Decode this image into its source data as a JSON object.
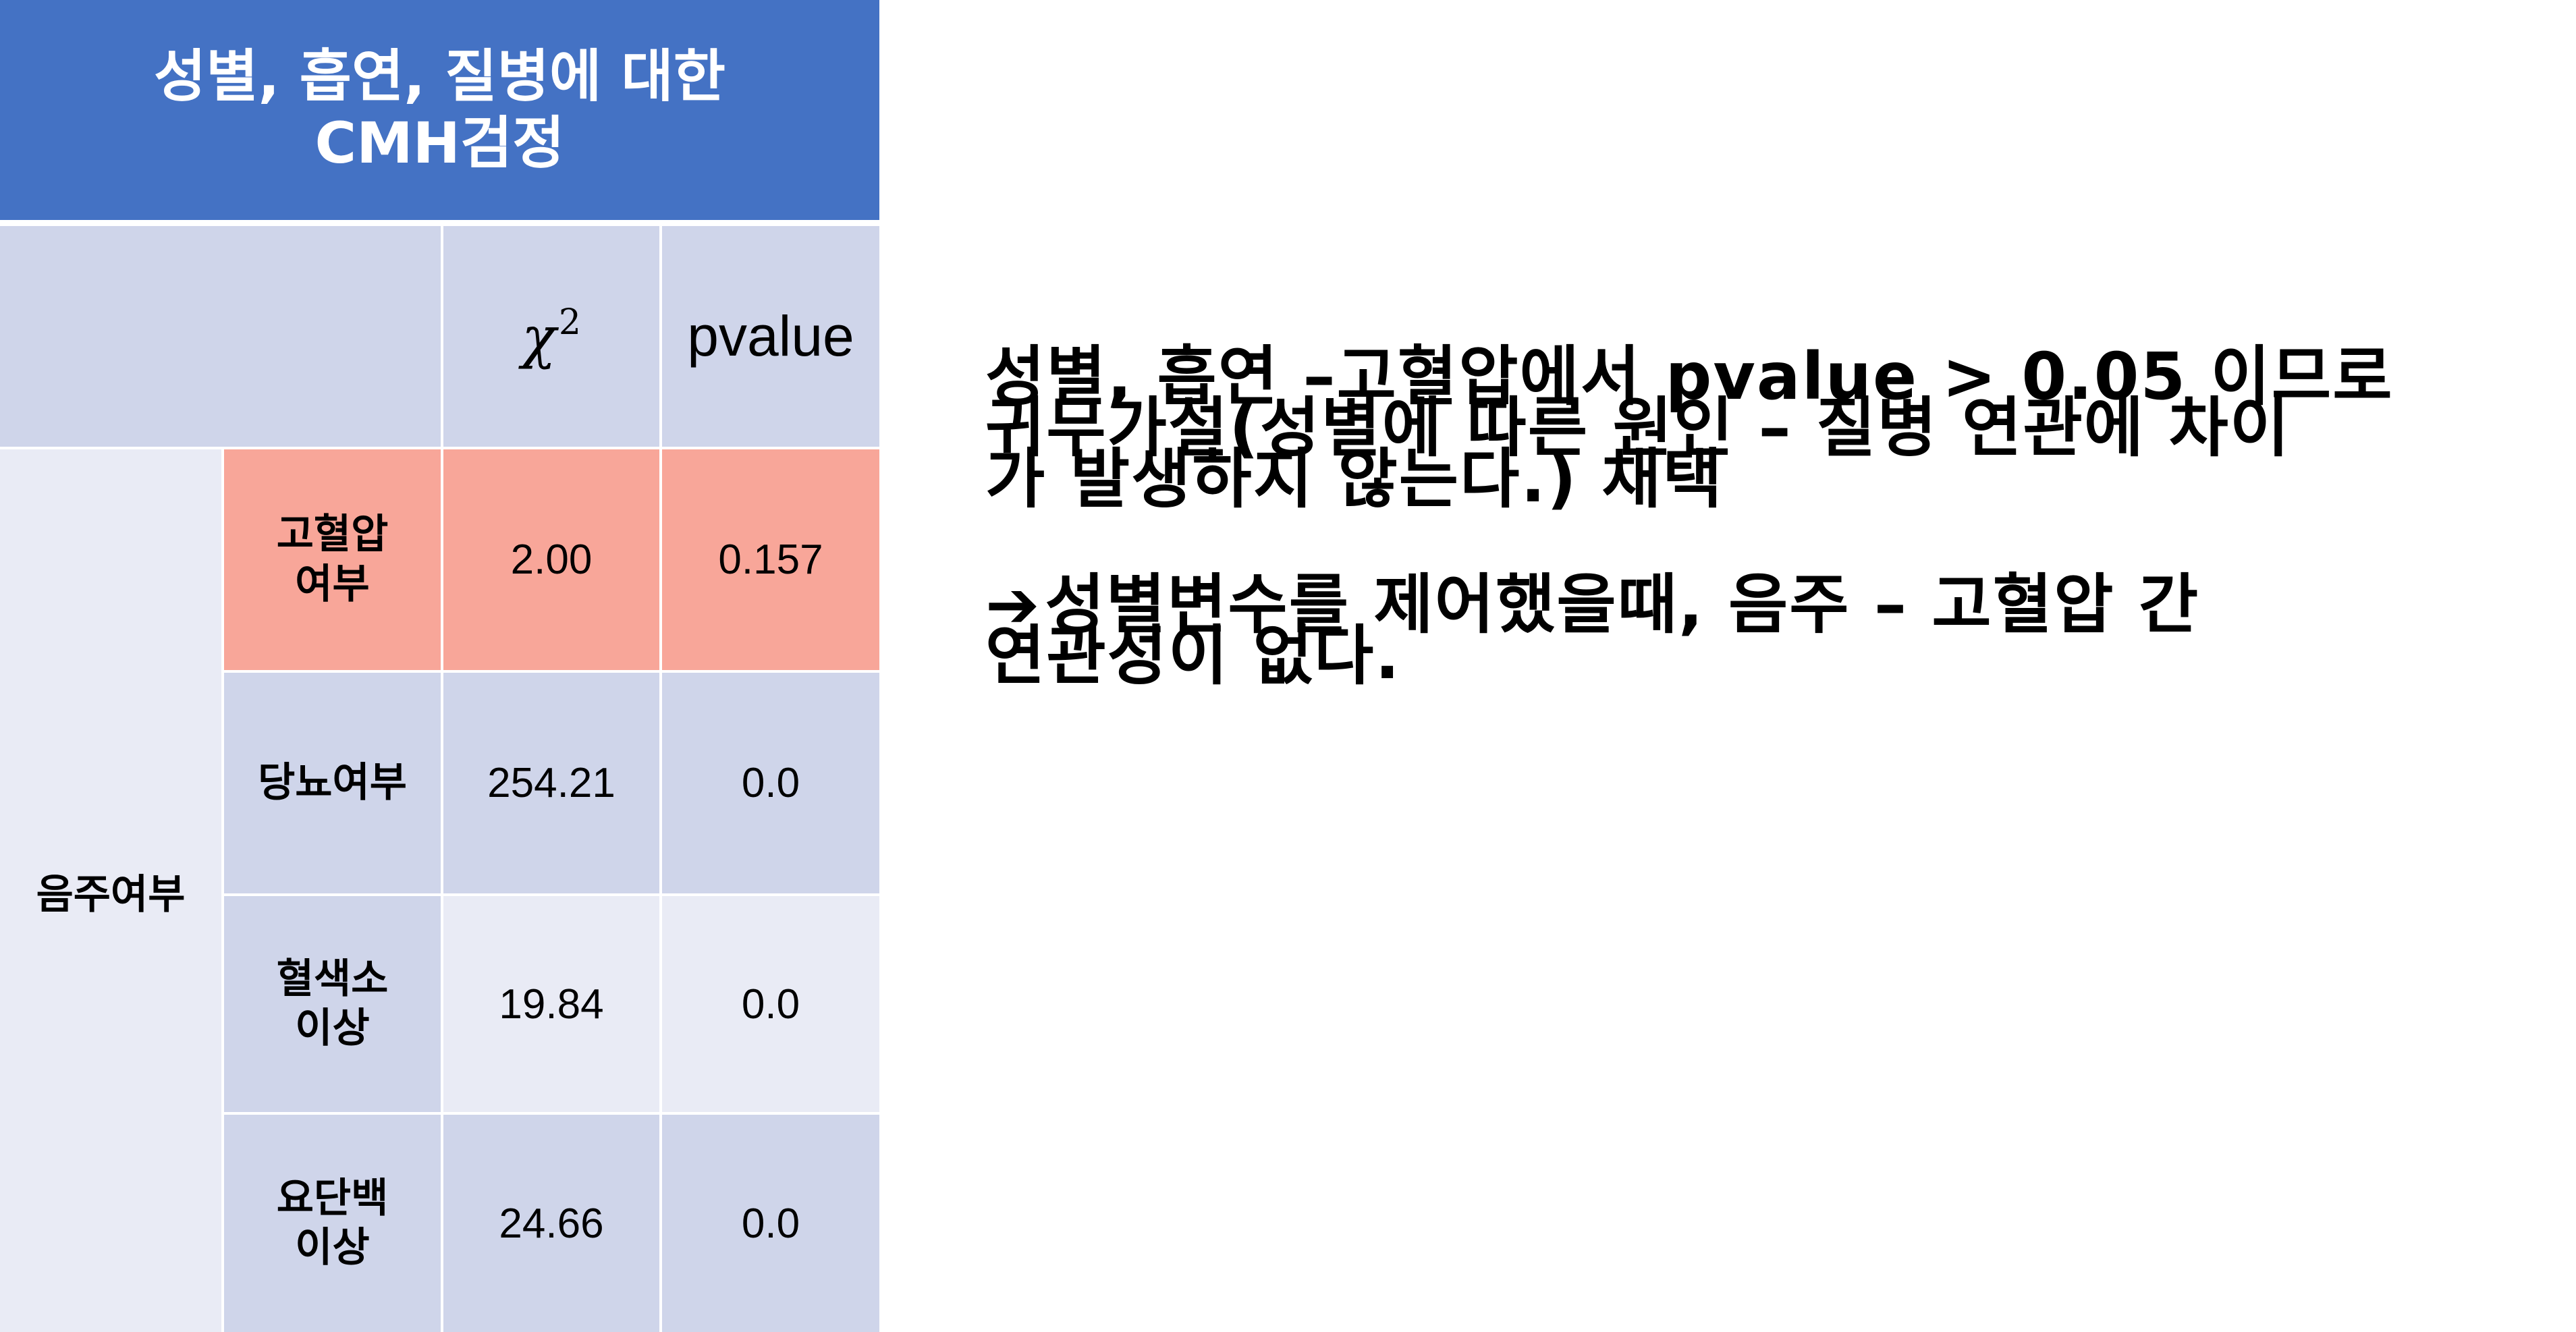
{
  "table": {
    "title_lines": [
      "성별, 흡연, 질병에 대한",
      "CMH검정"
    ],
    "header": {
      "chi_symbol": "χ",
      "chi_superscript": "2",
      "pvalue": "pvalue"
    },
    "group_label": "음주여부",
    "rows": [
      {
        "label_lines": [
          "고혈압",
          "여부"
        ],
        "chi2": "2.00",
        "pvalue": "0.157",
        "highlight": true
      },
      {
        "label_lines": [
          "당뇨여부"
        ],
        "chi2": "254.21",
        "pvalue": "0.0",
        "highlight": false
      },
      {
        "label_lines": [
          "혈색소",
          "이상"
        ],
        "chi2": "19.84",
        "pvalue": "0.0",
        "highlight": false
      },
      {
        "label_lines": [
          "요단백",
          "이상"
        ],
        "chi2": "24.66",
        "pvalue": "0.0",
        "highlight": false
      }
    ],
    "colors": {
      "title_bg": "#4472c4",
      "band_dark": "#cfd5ea",
      "band_light": "#e9ebf5",
      "highlight": "#f8a699"
    }
  },
  "explanation": {
    "paragraph1_lines": [
      "성별, 흡연 –고혈압에서 pvalue > 0.05 이므로",
      "귀무가설(성별에 따른 원인 – 질병 연관에 차이",
      "가 발생하지 않는다.) 채택"
    ],
    "arrow_icon": "➔",
    "paragraph2_lines": [
      "성별변수를 제어했을때, 음주 – 고혈압 간",
      "연관성이 없다."
    ]
  }
}
